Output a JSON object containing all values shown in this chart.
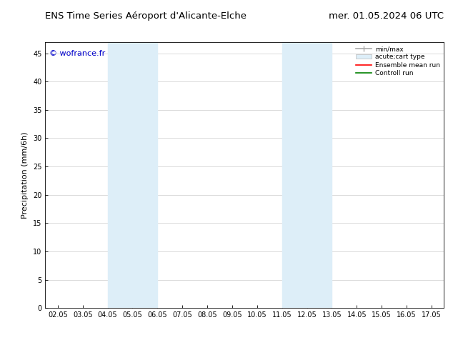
{
  "title_left": "ENS Time Series Aéroport d'Alicante-Elche",
  "title_right": "mer. 01.05.2024 06 UTC",
  "ylabel": "Precipitation (mm/6h)",
  "watermark": "© wofrance.fr",
  "xlim": [
    1.5,
    17.5
  ],
  "ylim": [
    0,
    47
  ],
  "yticks": [
    0,
    5,
    10,
    15,
    20,
    25,
    30,
    35,
    40,
    45
  ],
  "xtick_labels": [
    "02.05",
    "03.05",
    "04.05",
    "05.05",
    "06.05",
    "07.05",
    "08.05",
    "09.05",
    "10.05",
    "11.05",
    "12.05",
    "13.05",
    "14.05",
    "15.05",
    "16.05",
    "17.05"
  ],
  "xtick_positions": [
    2,
    3,
    4,
    5,
    6,
    7,
    8,
    9,
    10,
    11,
    12,
    13,
    14,
    15,
    16,
    17
  ],
  "shaded_bands": [
    {
      "xmin": 4.0,
      "xmax": 6.0,
      "color": "#ddeef8"
    },
    {
      "xmin": 11.0,
      "xmax": 13.0,
      "color": "#ddeef8"
    }
  ],
  "legend_entries": [
    {
      "label": "min/max",
      "color": "#aaaaaa",
      "lw": 1.2,
      "style": "solid"
    },
    {
      "label": "acute;cart type",
      "color": "#ddeef8",
      "lw": 6,
      "style": "solid"
    },
    {
      "label": "Ensemble mean run",
      "color": "#ff0000",
      "lw": 1.2,
      "style": "solid"
    },
    {
      "label": "Controll run",
      "color": "#008000",
      "lw": 1.2,
      "style": "solid"
    }
  ],
  "background_color": "#ffffff",
  "plot_bg_color": "#ffffff",
  "grid_color": "#cccccc",
  "title_fontsize": 9.5,
  "axis_label_fontsize": 8,
  "tick_fontsize": 7,
  "watermark_color": "#0000cc",
  "watermark_fontsize": 8
}
